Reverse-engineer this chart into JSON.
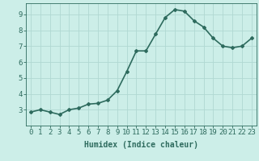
{
  "x": [
    0,
    1,
    2,
    3,
    4,
    5,
    6,
    7,
    8,
    9,
    10,
    11,
    12,
    13,
    14,
    15,
    16,
    17,
    18,
    19,
    20,
    21,
    22,
    23
  ],
  "y": [
    2.85,
    3.0,
    2.85,
    2.7,
    3.0,
    3.1,
    3.35,
    3.4,
    3.6,
    4.2,
    5.4,
    6.7,
    6.7,
    7.75,
    8.8,
    9.3,
    9.2,
    8.6,
    8.2,
    7.5,
    7.0,
    6.9,
    7.0,
    7.5
  ],
  "line_color": "#2e6b5e",
  "marker": "D",
  "marker_size": 2,
  "background_color": "#cceee8",
  "grid_color": "#b0d8d2",
  "xlabel": "Humidex (Indice chaleur)",
  "xlim": [
    -0.5,
    23.5
  ],
  "ylim": [
    2.0,
    9.7
  ],
  "yticks": [
    3,
    4,
    5,
    6,
    7,
    8,
    9
  ],
  "xticks": [
    0,
    1,
    2,
    3,
    4,
    5,
    6,
    7,
    8,
    9,
    10,
    11,
    12,
    13,
    14,
    15,
    16,
    17,
    18,
    19,
    20,
    21,
    22,
    23
  ],
  "xlabel_fontsize": 7,
  "tick_fontsize": 6.5,
  "axes_color": "#2e6b5e",
  "line_width": 1.2
}
